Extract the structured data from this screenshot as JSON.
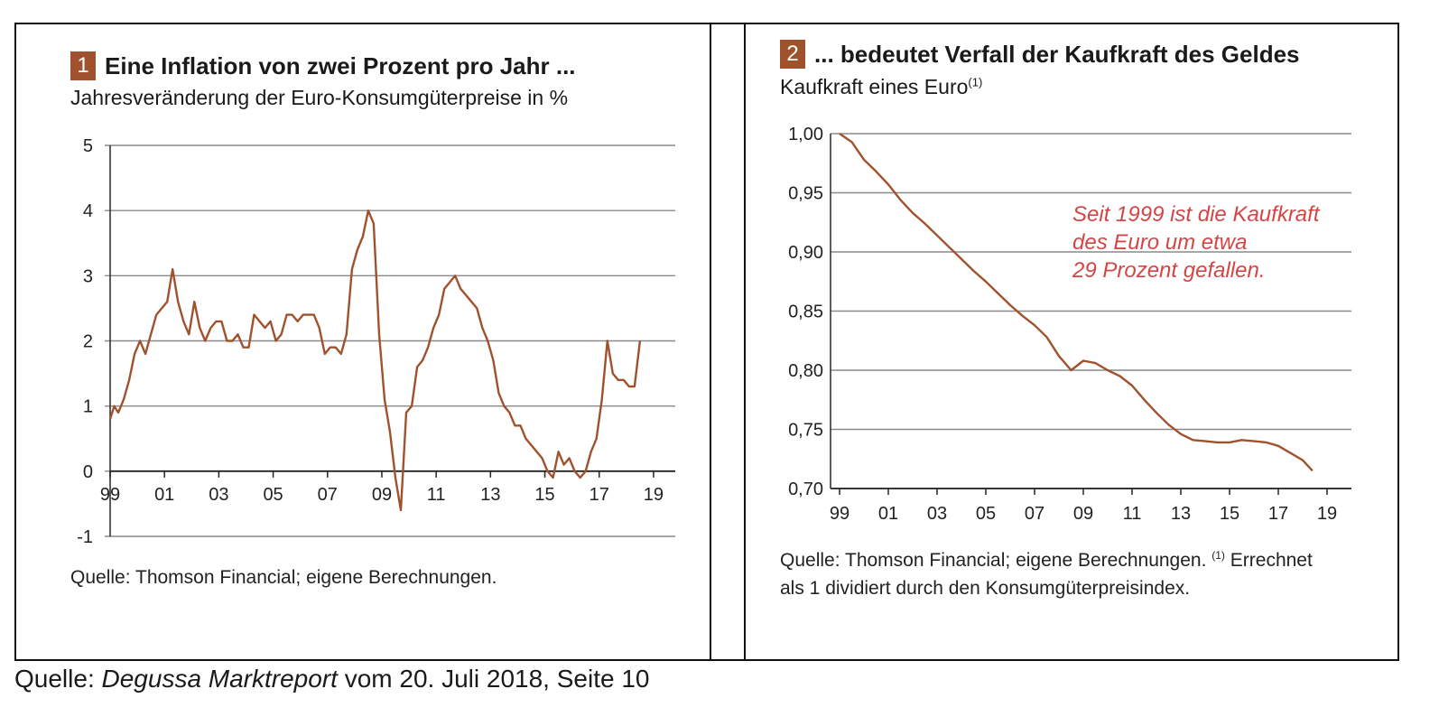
{
  "chart_data": [
    {
      "type": "line",
      "number": "1",
      "title": "Eine Inflation von zwei Prozent pro Jahr ...",
      "subtitle": "Jahresveränderung der Euro-Konsumgüterpreise in %",
      "source": "Quelle: Thomson Financial; eigene Berechnungen.",
      "x_tick_labels": [
        "99",
        "01",
        "03",
        "05",
        "07",
        "09",
        "11",
        "13",
        "15",
        "17",
        "19"
      ],
      "y_tick_labels": [
        "5",
        "4",
        "3",
        "2",
        "1",
        "0",
        "-1"
      ],
      "ylim": [
        -1,
        5
      ],
      "xlim": [
        1999,
        2019.8
      ],
      "grid": true,
      "line_color": "#a0522d",
      "series": [
        {
          "x": [
            1999.0,
            1999.15,
            1999.3,
            1999.5,
            1999.7,
            1999.9,
            2000.1,
            2000.3,
            2000.5,
            2000.7,
            2000.9,
            2001.1,
            2001.3,
            2001.5,
            2001.7,
            2001.9,
            2002.1,
            2002.3,
            2002.5,
            2002.7,
            2002.9,
            2003.1,
            2003.3,
            2003.5,
            2003.7,
            2003.9,
            2004.1,
            2004.3,
            2004.5,
            2004.7,
            2004.9,
            2005.1,
            2005.3,
            2005.5,
            2005.7,
            2005.9,
            2006.1,
            2006.3,
            2006.5,
            2006.7,
            2006.9,
            2007.1,
            2007.3,
            2007.5,
            2007.7,
            2007.9,
            2008.1,
            2008.3,
            2008.5,
            2008.7,
            2008.9,
            2009.1,
            2009.3,
            2009.5,
            2009.7,
            2009.9,
            2010.1,
            2010.3,
            2010.5,
            2010.7,
            2010.9,
            2011.1,
            2011.3,
            2011.5,
            2011.7,
            2011.9,
            2012.1,
            2012.3,
            2012.5,
            2012.7,
            2012.9,
            2013.1,
            2013.3,
            2013.5,
            2013.7,
            2013.9,
            2014.1,
            2014.3,
            2014.5,
            2014.7,
            2014.9,
            2015.1,
            2015.3,
            2015.5,
            2015.7,
            2015.9,
            2016.1,
            2016.3,
            2016.5,
            2016.7,
            2016.9,
            2017.1,
            2017.3,
            2017.5,
            2017.7,
            2017.9,
            2018.1,
            2018.3,
            2018.5
          ],
          "y": [
            0.8,
            1.0,
            0.9,
            1.1,
            1.4,
            1.8,
            2.0,
            1.8,
            2.1,
            2.4,
            2.5,
            2.6,
            3.1,
            2.6,
            2.3,
            2.1,
            2.6,
            2.2,
            2.0,
            2.2,
            2.3,
            2.3,
            2.0,
            2.0,
            2.1,
            1.9,
            1.9,
            2.4,
            2.3,
            2.2,
            2.3,
            2.0,
            2.1,
            2.4,
            2.4,
            2.3,
            2.4,
            2.4,
            2.4,
            2.2,
            1.8,
            1.9,
            1.9,
            1.8,
            2.1,
            3.1,
            3.4,
            3.6,
            4.0,
            3.8,
            2.1,
            1.1,
            0.6,
            -0.1,
            -0.6,
            0.9,
            1.0,
            1.6,
            1.7,
            1.9,
            2.2,
            2.4,
            2.8,
            2.9,
            3.0,
            2.8,
            2.7,
            2.6,
            2.5,
            2.2,
            2.0,
            1.7,
            1.2,
            1.0,
            0.9,
            0.7,
            0.7,
            0.5,
            0.4,
            0.3,
            0.2,
            0.0,
            -0.1,
            0.3,
            0.1,
            0.2,
            0.0,
            -0.1,
            0.0,
            0.3,
            0.5,
            1.1,
            2.0,
            1.5,
            1.4,
            1.4,
            1.3,
            1.3,
            2.0
          ]
        }
      ]
    },
    {
      "type": "line",
      "number": "2",
      "title": "... bedeutet Verfall der Kaufkraft des Geldes",
      "subtitle": "Kaufkraft eines Euro",
      "subtitle_sup": "(1)",
      "annotation": [
        "Seit 1999 ist die Kaufkraft",
        "des Euro um etwa",
        "29 Prozent gefallen."
      ],
      "source_line1": "Quelle: Thomson Financial; eigene Berechnungen.",
      "source_sup": "(1)",
      "source_line1_tail": "Errechnet",
      "source_line2": "als 1 dividiert durch den Konsumgüterpreisindex.",
      "x_tick_labels": [
        "99",
        "01",
        "03",
        "05",
        "07",
        "09",
        "11",
        "13",
        "15",
        "17",
        "19"
      ],
      "y_tick_labels": [
        "1,00",
        "0,95",
        "0,90",
        "0,85",
        "0,80",
        "0,75",
        "0,70"
      ],
      "ylim": [
        0.7,
        1.0
      ],
      "xlim": [
        1999,
        2020
      ],
      "grid": true,
      "line_color": "#a0522d",
      "series": [
        {
          "x": [
            1999.0,
            1999.5,
            2000.0,
            2000.5,
            2001.0,
            2001.5,
            2002.0,
            2002.5,
            2003.0,
            2003.5,
            2004.0,
            2004.5,
            2005.0,
            2005.5,
            2006.0,
            2006.5,
            2007.0,
            2007.5,
            2008.0,
            2008.5,
            2009.0,
            2009.5,
            2010.0,
            2010.5,
            2011.0,
            2011.5,
            2012.0,
            2012.5,
            2013.0,
            2013.5,
            2014.0,
            2014.5,
            2015.0,
            2015.5,
            2016.0,
            2016.5,
            2017.0,
            2017.5,
            2018.0,
            2018.4
          ],
          "y": [
            1.0,
            0.993,
            0.978,
            0.968,
            0.957,
            0.944,
            0.933,
            0.924,
            0.914,
            0.904,
            0.894,
            0.884,
            0.875,
            0.865,
            0.855,
            0.846,
            0.838,
            0.828,
            0.812,
            0.8,
            0.808,
            0.806,
            0.8,
            0.795,
            0.787,
            0.775,
            0.764,
            0.754,
            0.746,
            0.741,
            0.74,
            0.739,
            0.739,
            0.741,
            0.74,
            0.739,
            0.736,
            0.73,
            0.724,
            0.715
          ]
        }
      ]
    }
  ],
  "footer": {
    "prefix": "Quelle: ",
    "italic": "Degussa Marktreport",
    "suffix": " vom 20. Juli 2018, Seite 10"
  }
}
